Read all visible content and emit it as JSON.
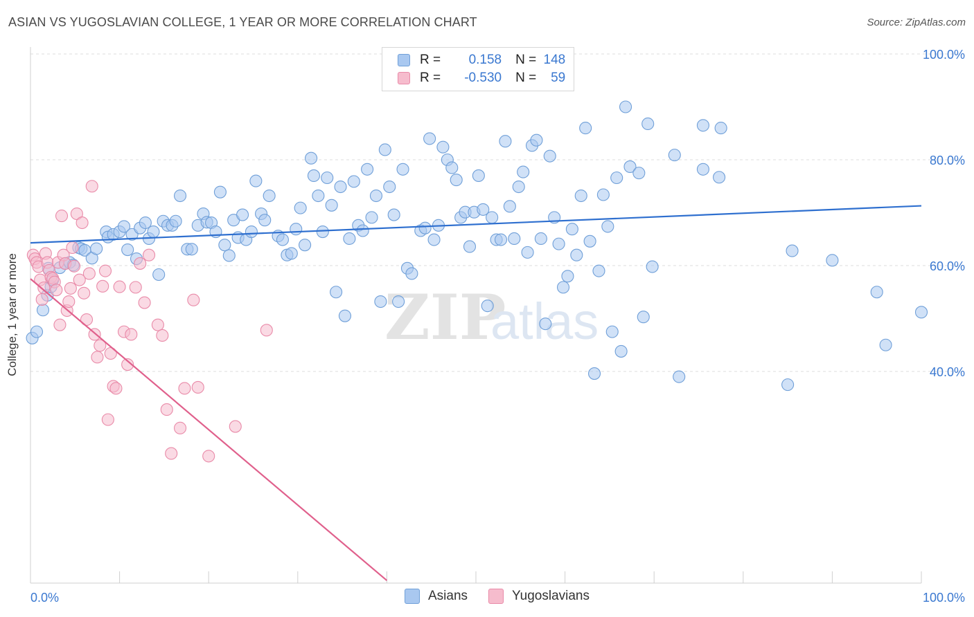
{
  "title": "ASIAN VS YUGOSLAVIAN COLLEGE, 1 YEAR OR MORE CORRELATION CHART",
  "source": "Source: ZipAtlas.com",
  "legend": {
    "rows": [
      {
        "r_label": "R =",
        "r_value": "0.158",
        "n_label": "N =",
        "n_value": "148"
      },
      {
        "r_label": "R =",
        "r_value": "-0.530",
        "n_label": "N =",
        "n_value": "59"
      }
    ]
  },
  "watermark": {
    "zip": "ZIP",
    "atlas": "atlas"
  },
  "colors": {
    "blue_fill": "#a9c8f0",
    "blue_stroke": "#6f9fd8",
    "blue_line": "#2e6fcf",
    "pink_fill": "#f6bccd",
    "pink_stroke": "#e98aa8",
    "pink_line": "#e0608c",
    "axis_label": "#3a78d0",
    "grid": "#dcdcdc"
  },
  "chart_data": {
    "type": "scatter",
    "title": "ASIAN VS YUGOSLAVIAN COLLEGE, 1 YEAR OR MORE CORRELATION CHART",
    "xlabel": "",
    "ylabel": "College, 1 year or more",
    "xlim": [
      0,
      100
    ],
    "ylim": [
      0,
      100
    ],
    "x_tick_labels": [
      "0.0%",
      "100.0%"
    ],
    "y_tick_labels": [
      "40.0%",
      "60.0%",
      "80.0%",
      "100.0%"
    ],
    "y_ticks": [
      40,
      60,
      80,
      100
    ],
    "grid": true,
    "legend_position": "bottom",
    "series": [
      {
        "name": "Asians",
        "color": "#a9c8f0",
        "trend": {
          "x": [
            0,
            100
          ],
          "y": [
            64.3,
            71.3
          ]
        },
        "points": [
          [
            0.2,
            46.3
          ],
          [
            0.7,
            47.5
          ],
          [
            1.4,
            51.6
          ],
          [
            1.9,
            54.4
          ],
          [
            2.3,
            56.0
          ],
          [
            2.5,
            57.3
          ],
          [
            3.3,
            59.6
          ],
          [
            3.9,
            60.4
          ],
          [
            4.4,
            60.6
          ],
          [
            4.8,
            60.1
          ],
          [
            5.4,
            63.4
          ],
          [
            5.7,
            63.2
          ],
          [
            6.1,
            62.9
          ],
          [
            6.9,
            61.4
          ],
          [
            7.4,
            63.2
          ],
          [
            8.5,
            66.4
          ],
          [
            8.7,
            65.4
          ],
          [
            9.3,
            65.9
          ],
          [
            10.0,
            66.4
          ],
          [
            10.5,
            67.4
          ],
          [
            10.9,
            63.0
          ],
          [
            11.4,
            65.9
          ],
          [
            11.9,
            61.3
          ],
          [
            12.3,
            67.1
          ],
          [
            12.9,
            68.1
          ],
          [
            13.3,
            65.1
          ],
          [
            13.8,
            66.4
          ],
          [
            14.4,
            58.3
          ],
          [
            14.9,
            68.4
          ],
          [
            15.4,
            67.6
          ],
          [
            15.9,
            67.6
          ],
          [
            16.3,
            68.4
          ],
          [
            16.8,
            73.2
          ],
          [
            17.6,
            63.1
          ],
          [
            18.1,
            63.1
          ],
          [
            18.8,
            67.6
          ],
          [
            19.4,
            69.8
          ],
          [
            19.8,
            68.2
          ],
          [
            20.3,
            68.1
          ],
          [
            20.8,
            66.4
          ],
          [
            21.3,
            73.9
          ],
          [
            21.8,
            63.9
          ],
          [
            22.3,
            61.9
          ],
          [
            22.8,
            68.6
          ],
          [
            23.3,
            65.3
          ],
          [
            23.8,
            69.6
          ],
          [
            24.2,
            64.9
          ],
          [
            24.8,
            66.4
          ],
          [
            25.3,
            76.0
          ],
          [
            25.9,
            69.8
          ],
          [
            26.3,
            68.6
          ],
          [
            26.8,
            73.2
          ],
          [
            27.8,
            65.6
          ],
          [
            28.3,
            64.9
          ],
          [
            28.8,
            62.0
          ],
          [
            29.3,
            62.3
          ],
          [
            29.8,
            66.9
          ],
          [
            30.3,
            70.9
          ],
          [
            30.8,
            63.9
          ],
          [
            31.5,
            80.3
          ],
          [
            31.8,
            77.0
          ],
          [
            32.3,
            73.2
          ],
          [
            32.8,
            66.4
          ],
          [
            33.3,
            76.6
          ],
          [
            33.8,
            71.4
          ],
          [
            34.3,
            55.0
          ],
          [
            34.8,
            74.9
          ],
          [
            35.3,
            50.5
          ],
          [
            35.8,
            65.1
          ],
          [
            36.3,
            75.9
          ],
          [
            36.8,
            67.6
          ],
          [
            37.3,
            66.6
          ],
          [
            37.8,
            78.2
          ],
          [
            38.3,
            69.1
          ],
          [
            38.8,
            73.2
          ],
          [
            39.3,
            53.2
          ],
          [
            39.8,
            81.9
          ],
          [
            40.3,
            74.9
          ],
          [
            40.8,
            69.6
          ],
          [
            41.3,
            53.2
          ],
          [
            41.8,
            78.2
          ],
          [
            42.3,
            59.5
          ],
          [
            42.8,
            58.5
          ],
          [
            43.8,
            66.6
          ],
          [
            44.3,
            67.1
          ],
          [
            44.8,
            84.0
          ],
          [
            45.3,
            64.9
          ],
          [
            45.8,
            67.6
          ],
          [
            46.3,
            82.4
          ],
          [
            46.8,
            80.0
          ],
          [
            47.3,
            78.5
          ],
          [
            47.8,
            76.2
          ],
          [
            48.3,
            69.1
          ],
          [
            48.8,
            70.1
          ],
          [
            49.3,
            63.6
          ],
          [
            49.8,
            70.1
          ],
          [
            50.3,
            77.0
          ],
          [
            50.8,
            70.6
          ],
          [
            51.3,
            52.4
          ],
          [
            51.8,
            69.1
          ],
          [
            52.3,
            64.9
          ],
          [
            52.8,
            64.9
          ],
          [
            53.3,
            83.5
          ],
          [
            53.8,
            71.2
          ],
          [
            54.3,
            65.1
          ],
          [
            54.8,
            74.9
          ],
          [
            55.3,
            77.7
          ],
          [
            55.8,
            62.5
          ],
          [
            56.3,
            82.7
          ],
          [
            56.8,
            83.7
          ],
          [
            57.3,
            65.1
          ],
          [
            57.8,
            49.0
          ],
          [
            58.3,
            80.7
          ],
          [
            58.8,
            69.1
          ],
          [
            59.3,
            64.1
          ],
          [
            59.8,
            55.9
          ],
          [
            60.3,
            58.0
          ],
          [
            60.8,
            66.9
          ],
          [
            61.3,
            62.0
          ],
          [
            61.8,
            73.2
          ],
          [
            62.3,
            86.0
          ],
          [
            62.8,
            64.6
          ],
          [
            63.3,
            39.6
          ],
          [
            63.8,
            59.0
          ],
          [
            64.3,
            73.4
          ],
          [
            64.8,
            67.4
          ],
          [
            65.3,
            47.5
          ],
          [
            65.8,
            76.6
          ],
          [
            66.3,
            43.8
          ],
          [
            66.8,
            90.0
          ],
          [
            67.3,
            78.7
          ],
          [
            68.3,
            77.5
          ],
          [
            68.8,
            50.3
          ],
          [
            69.3,
            86.8
          ],
          [
            69.8,
            59.8
          ],
          [
            72.3,
            80.9
          ],
          [
            72.8,
            39.0
          ],
          [
            75.5,
            78.2
          ],
          [
            75.5,
            86.5
          ],
          [
            77.3,
            76.7
          ],
          [
            77.5,
            86.0
          ],
          [
            85.0,
            37.5
          ],
          [
            85.5,
            62.8
          ],
          [
            90.0,
            61.0
          ],
          [
            95.0,
            55.0
          ],
          [
            96.0,
            45.0
          ],
          [
            100.0,
            51.2
          ],
          [
            2.0,
            59.5
          ]
        ]
      },
      {
        "name": "Yugoslavians",
        "color": "#f6bccd",
        "trend": {
          "x": [
            0,
            40
          ],
          "y": [
            57.5,
            0.5
          ]
        },
        "points": [
          [
            0.3,
            62.0
          ],
          [
            0.5,
            61.3
          ],
          [
            0.7,
            60.6
          ],
          [
            0.9,
            59.8
          ],
          [
            1.1,
            57.3
          ],
          [
            1.3,
            53.6
          ],
          [
            1.5,
            55.8
          ],
          [
            1.7,
            62.3
          ],
          [
            1.9,
            60.6
          ],
          [
            2.1,
            59.1
          ],
          [
            2.3,
            57.8
          ],
          [
            2.5,
            57.6
          ],
          [
            2.7,
            56.9
          ],
          [
            2.9,
            55.4
          ],
          [
            3.1,
            60.6
          ],
          [
            3.3,
            48.8
          ],
          [
            3.5,
            69.4
          ],
          [
            3.7,
            62.0
          ],
          [
            3.9,
            60.4
          ],
          [
            4.1,
            51.5
          ],
          [
            4.3,
            53.2
          ],
          [
            4.5,
            55.7
          ],
          [
            4.7,
            63.4
          ],
          [
            4.9,
            59.9
          ],
          [
            5.2,
            69.8
          ],
          [
            5.5,
            57.3
          ],
          [
            5.8,
            68.1
          ],
          [
            6.0,
            54.8
          ],
          [
            6.3,
            49.8
          ],
          [
            6.6,
            58.5
          ],
          [
            6.9,
            75.0
          ],
          [
            7.2,
            47.0
          ],
          [
            7.5,
            42.7
          ],
          [
            7.8,
            44.9
          ],
          [
            8.1,
            56.1
          ],
          [
            8.4,
            59.0
          ],
          [
            8.7,
            30.9
          ],
          [
            9.0,
            43.4
          ],
          [
            9.3,
            37.2
          ],
          [
            9.6,
            36.8
          ],
          [
            10.0,
            56.0
          ],
          [
            10.5,
            47.5
          ],
          [
            10.9,
            41.3
          ],
          [
            11.3,
            47.0
          ],
          [
            11.8,
            55.9
          ],
          [
            12.3,
            60.4
          ],
          [
            12.8,
            53.0
          ],
          [
            13.3,
            62.0
          ],
          [
            14.3,
            48.8
          ],
          [
            14.8,
            46.8
          ],
          [
            15.3,
            32.8
          ],
          [
            15.8,
            24.5
          ],
          [
            16.8,
            29.3
          ],
          [
            17.3,
            36.8
          ],
          [
            18.3,
            53.5
          ],
          [
            18.8,
            37.0
          ],
          [
            20.0,
            24.0
          ],
          [
            23.0,
            29.6
          ],
          [
            26.5,
            47.8
          ]
        ]
      }
    ]
  },
  "axis_labels": {
    "ylabel": "College, 1 year or more",
    "x_left": "0.0%",
    "x_right": "100.0%",
    "y_ticks": [
      "40.0%",
      "60.0%",
      "80.0%",
      "100.0%"
    ]
  },
  "bottom_legend": [
    {
      "label": "Asians"
    },
    {
      "label": "Yugoslavians"
    }
  ]
}
